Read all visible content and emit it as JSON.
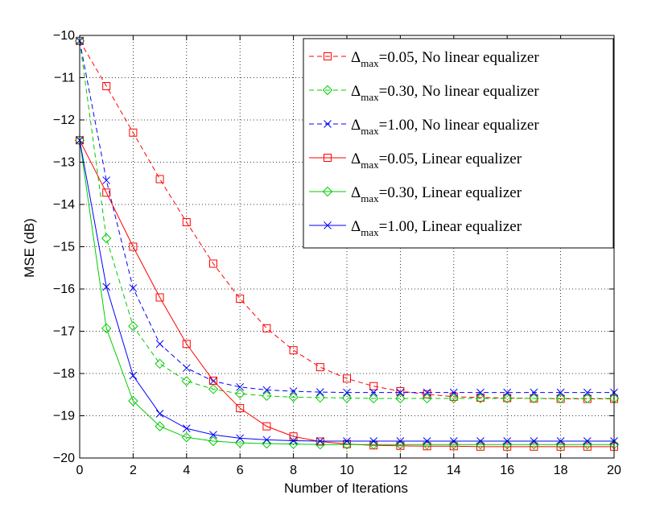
{
  "chart_data": {
    "type": "line",
    "title": "",
    "xlabel": "Number of Iterations",
    "ylabel": "MSE (dB)",
    "xlim": [
      0,
      20
    ],
    "ylim": [
      -20,
      -10
    ],
    "xticks": [
      "0",
      "2",
      "4",
      "6",
      "8",
      "10",
      "12",
      "14",
      "16",
      "18",
      "20"
    ],
    "yticks": [
      "-10",
      "-11",
      "-12",
      "-13",
      "-14",
      "-15",
      "-16",
      "-17",
      "-18",
      "-19",
      "-20"
    ],
    "grid": true,
    "legend_position": "top-right",
    "x": [
      0,
      1,
      2,
      3,
      4,
      5,
      6,
      7,
      8,
      9,
      10,
      11,
      12,
      13,
      14,
      15,
      16,
      17,
      18,
      19,
      20
    ],
    "series": [
      {
        "name_prefix": "Δ",
        "name_sub": "max",
        "name_suffix": "=0.05, No linear equalizer",
        "color": "#ff0000",
        "dash": "dashed",
        "marker": "square",
        "values": [
          -10.13,
          -11.2,
          -12.3,
          -13.4,
          -14.42,
          -15.4,
          -16.23,
          -16.93,
          -17.45,
          -17.85,
          -18.12,
          -18.3,
          -18.42,
          -18.49,
          -18.55,
          -18.57,
          -18.58,
          -18.59,
          -18.6,
          -18.6,
          -18.6
        ]
      },
      {
        "name_prefix": "Δ",
        "name_sub": "max",
        "name_suffix": "=0.30, No linear equalizer",
        "color": "#00cc00",
        "dash": "dashed",
        "marker": "diamond",
        "values": [
          -10.13,
          -14.8,
          -16.88,
          -17.77,
          -18.18,
          -18.37,
          -18.48,
          -18.53,
          -18.56,
          -18.57,
          -18.58,
          -18.59,
          -18.59,
          -18.59,
          -18.59,
          -18.59,
          -18.59,
          -18.59,
          -18.59,
          -18.59,
          -18.59
        ]
      },
      {
        "name_prefix": "Δ",
        "name_sub": "max",
        "name_suffix": "=1.00, No linear equalizer",
        "color": "#0000ff",
        "dash": "dashed",
        "marker": "x",
        "values": [
          -10.13,
          -13.43,
          -15.98,
          -17.3,
          -17.87,
          -18.18,
          -18.32,
          -18.39,
          -18.42,
          -18.44,
          -18.45,
          -18.45,
          -18.45,
          -18.45,
          -18.45,
          -18.45,
          -18.45,
          -18.45,
          -18.45,
          -18.45,
          -18.45
        ]
      },
      {
        "name_prefix": "Δ",
        "name_sub": "max",
        "name_suffix": "=0.05, Linear equalizer",
        "color": "#ff0000",
        "dash": "solid",
        "marker": "square",
        "values": [
          -12.48,
          -13.72,
          -15.0,
          -16.2,
          -17.3,
          -18.17,
          -18.82,
          -19.25,
          -19.49,
          -19.61,
          -19.67,
          -19.7,
          -19.71,
          -19.72,
          -19.72,
          -19.73,
          -19.73,
          -19.73,
          -19.73,
          -19.73,
          -19.73
        ]
      },
      {
        "name_prefix": "Δ",
        "name_sub": "max",
        "name_suffix": "=0.30, Linear equalizer",
        "color": "#00cc00",
        "dash": "solid",
        "marker": "diamond",
        "values": [
          -12.48,
          -16.93,
          -18.65,
          -19.25,
          -19.51,
          -19.6,
          -19.64,
          -19.66,
          -19.67,
          -19.68,
          -19.68,
          -19.68,
          -19.68,
          -19.68,
          -19.68,
          -19.68,
          -19.68,
          -19.68,
          -19.68,
          -19.68,
          -19.68
        ]
      },
      {
        "name_prefix": "Δ",
        "name_sub": "max",
        "name_suffix": "=1.00, Linear equalizer",
        "color": "#0000ff",
        "dash": "solid",
        "marker": "x",
        "values": [
          -12.48,
          -15.95,
          -18.05,
          -18.95,
          -19.3,
          -19.45,
          -19.53,
          -19.57,
          -19.59,
          -19.6,
          -19.6,
          -19.6,
          -19.6,
          -19.6,
          -19.6,
          -19.6,
          -19.6,
          -19.6,
          -19.6,
          -19.6,
          -19.6
        ]
      }
    ]
  }
}
